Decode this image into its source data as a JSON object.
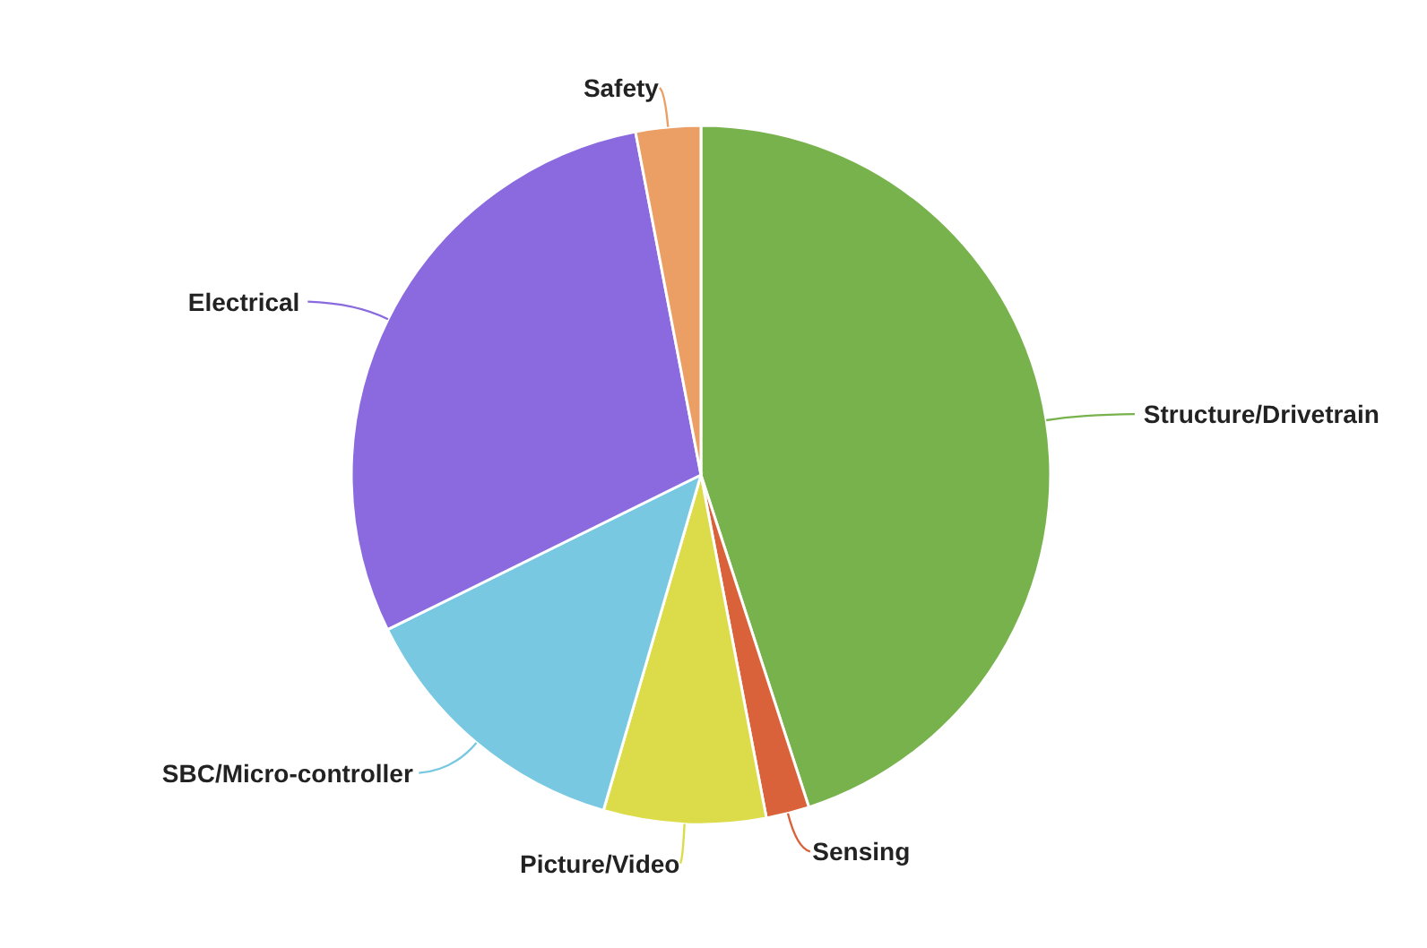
{
  "chart_data": {
    "type": "pie",
    "categories": [
      "Structure/Drivetrain",
      "Sensing",
      "Picture/Video",
      "SBC/Micro-controller",
      "Electrical",
      "Safety"
    ],
    "values": [
      45,
      2,
      7.5,
      13.2,
      29.3,
      3
    ],
    "colors": [
      "#77b24c",
      "#d9623a",
      "#dcdc4a",
      "#78c8e2",
      "#8a6ade",
      "#eb9f65"
    ],
    "legend": false
  }
}
